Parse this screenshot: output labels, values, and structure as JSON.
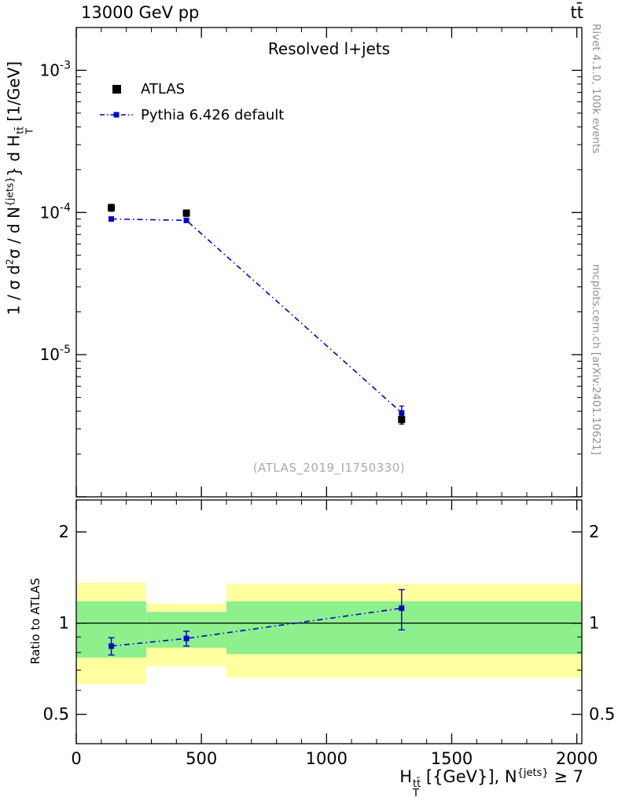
{
  "header": {
    "left": "13000 GeV pp",
    "right": "tt̄"
  },
  "side_notes": {
    "top": "Rivet 4.1.0, 100k events",
    "bottom": "mcplots.cern.ch [arXiv:2401.10621]"
  },
  "watermark": "(ATLAS_2019_I1750330)",
  "colors": {
    "atlas_black": "#000000",
    "pythia_blue": "#0000cc",
    "band_yellow": "#ffffa0",
    "band_green": "#8df08c",
    "gray_note": "#909090",
    "watermark_gray": "#aaaaaa"
  },
  "labels": {
    "ylabel_segments": [
      {
        "t": "1 / σ d"
      },
      {
        "sup": "2"
      },
      {
        "t": "σ / d N"
      },
      {
        "sup": "{jets}"
      },
      {
        "t": "} d H"
      },
      {
        "stack": {
          "sup": "tt̄",
          "sub": "T"
        }
      },
      {
        "t": " [1/GeV]"
      }
    ],
    "xlabel_segments": [
      {
        "t": "H"
      },
      {
        "stack": {
          "sup": "tt̄",
          "sub": "T"
        }
      },
      {
        "t": " [{GeV}], N"
      },
      {
        "sup": "{jets}"
      },
      {
        "t": " ≥ 7"
      }
    ]
  },
  "chart_data": {
    "type": "line",
    "title": "Resolved l+jets",
    "xlabel": "H_T^{ttbar} [{GeV}], N^{jets} >= 7",
    "xlim": [
      0,
      2020
    ],
    "xticks": [
      0,
      500,
      1000,
      1500,
      2000
    ],
    "x_minor_step": 100,
    "main_panel": {
      "ylabel": "1 / σ d²σ / d N^{jets}} d H_T^{ttbar} [1/GeV]",
      "yscale": "log",
      "ylim": [
        1e-06,
        0.002
      ],
      "ytick_exponents": [
        -3,
        -4,
        -5
      ],
      "series": [
        {
          "name": "ATLAS",
          "color": "#000000",
          "marker": "square",
          "line": "none",
          "x": [
            140,
            440,
            1300
          ],
          "y": [
            0.000108,
            9.9e-05,
            3.5e-06
          ],
          "yerr": [
            6e-06,
            5e-06,
            2.5e-07
          ]
        },
        {
          "name": "Pythia 6.426 default",
          "color": "#0000cc",
          "marker": "square",
          "line": "dashdot",
          "x": [
            140,
            440,
            1300
          ],
          "y": [
            9e-05,
            8.8e-05,
            3.9e-06
          ],
          "yerr": [
            2.5e-06,
            2.5e-06,
            4.5e-07
          ]
        }
      ]
    },
    "ratio_panel": {
      "ylabel": "Ratio to ATLAS",
      "yscale": "log",
      "ylim": [
        0.4,
        2.55
      ],
      "yticks": [
        0.5,
        1,
        2
      ],
      "yticks_minor": [
        0.4,
        0.6,
        0.7,
        0.8,
        0.9
      ],
      "reference_line": 1,
      "bands": [
        {
          "x0": 0,
          "x1": 280,
          "yellow": [
            0.63,
            1.36
          ],
          "green": [
            0.77,
            1.18
          ]
        },
        {
          "x0": 280,
          "x1": 600,
          "yellow": [
            0.72,
            1.16
          ],
          "green": [
            0.83,
            1.09
          ]
        },
        {
          "x0": 600,
          "x1": 2020,
          "yellow": [
            0.66,
            1.35
          ],
          "green": [
            0.79,
            1.18
          ]
        }
      ],
      "series": {
        "name": "Pythia 6.426 default / ATLAS",
        "color": "#0000cc",
        "x": [
          140,
          440,
          1300
        ],
        "y": [
          0.84,
          0.89,
          1.12
        ],
        "yerr": [
          0.055,
          0.05,
          0.17
        ]
      }
    }
  }
}
